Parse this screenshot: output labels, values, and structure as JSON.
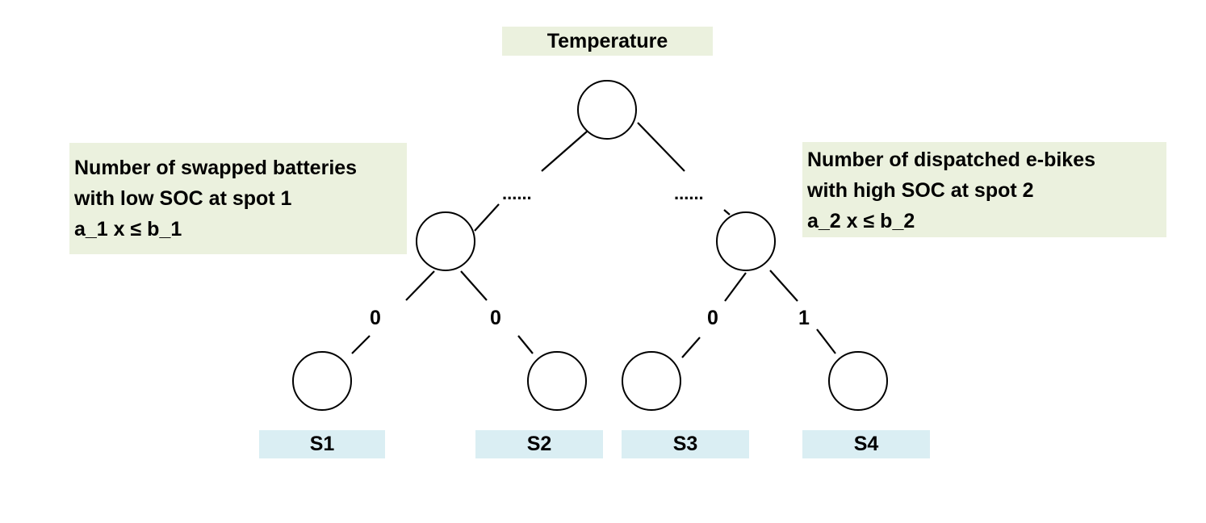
{
  "root_box": {
    "label": "Temperature"
  },
  "left_box": {
    "lines": [
      "Number of swapped batteries",
      "with low SOC at spot 1",
      "a_1 x ≤ b_1"
    ]
  },
  "right_box": {
    "lines": [
      "Number of dispatched e-bikes",
      "with high SOC at spot 2",
      "a_2 x ≤ b_2"
    ]
  },
  "ellipsis": {
    "left": "......",
    "right": "......"
  },
  "edge_labels": [
    "0",
    "0",
    "0",
    "1"
  ],
  "leaves": [
    "S1",
    "S2",
    "S3",
    "S4"
  ],
  "colors": {
    "feature_box": "#EBF1DE",
    "leaf_box": "#DAEEF3",
    "stroke": "#000000"
  }
}
